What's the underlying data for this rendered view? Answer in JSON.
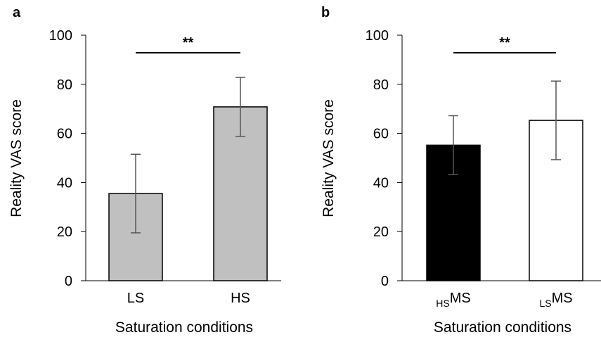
{
  "chart_data": [
    {
      "panel": "a",
      "type": "bar",
      "categories": [
        {
          "label": "LS",
          "sub": ""
        },
        {
          "label": "HS",
          "sub": ""
        }
      ],
      "values": [
        35.5,
        70.8
      ],
      "error": [
        16,
        12
      ],
      "bar_colors": [
        "#c0c0c0",
        "#c0c0c0"
      ],
      "xlabel": "Saturation conditions",
      "ylabel": "Reality VAS score",
      "ylim": [
        0,
        100
      ],
      "yticks": [
        "0",
        "20",
        "40",
        "60",
        "80",
        "100"
      ],
      "significance": "**"
    },
    {
      "panel": "b",
      "type": "bar",
      "categories": [
        {
          "label": "MS",
          "sub": "HS"
        },
        {
          "label": "MS",
          "sub": "LS"
        }
      ],
      "values": [
        55.2,
        65.3
      ],
      "error": [
        12,
        16
      ],
      "bar_colors": [
        "#000000",
        "#ffffff"
      ],
      "xlabel": "Saturation conditions",
      "ylabel": "Reality VAS score",
      "ylim": [
        0,
        100
      ],
      "yticks": [
        "0",
        "20",
        "40",
        "60",
        "80",
        "100"
      ],
      "significance": "**"
    }
  ]
}
